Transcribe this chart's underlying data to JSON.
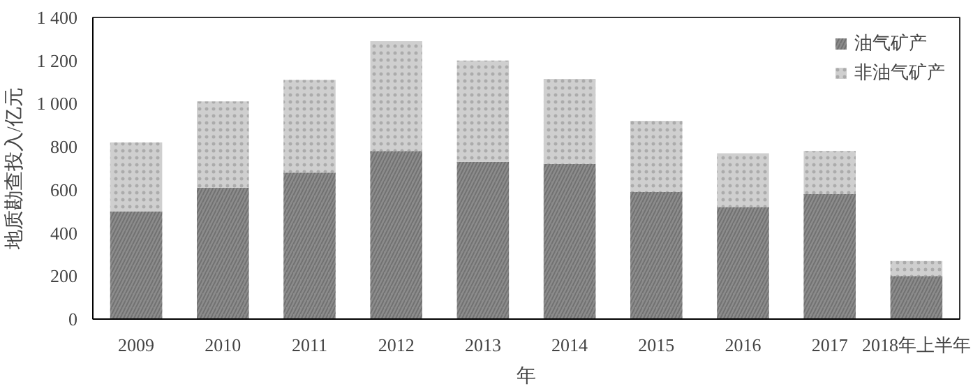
{
  "chart_data": {
    "type": "bar",
    "stacked": true,
    "xlabel": "年",
    "ylabel": "地质勘查投入/亿元",
    "categories": [
      "2009",
      "2010",
      "2011",
      "2012",
      "2013",
      "2014",
      "2015",
      "2016",
      "2017",
      "2018年上半年"
    ],
    "series": [
      {
        "name": "油气矿产",
        "color": "#8c8c8c",
        "values": [
          500,
          610,
          680,
          780,
          730,
          720,
          590,
          520,
          580,
          200
        ]
      },
      {
        "name": "非油气矿产",
        "color": "#cfcfcf",
        "values": [
          320,
          400,
          430,
          510,
          470,
          395,
          330,
          250,
          200,
          70
        ]
      }
    ],
    "ylim": [
      0,
      1400
    ],
    "yticks": [
      0,
      {
        "value": 200,
        "label": "200"
      },
      {
        "value": 400,
        "label": "400"
      },
      {
        "value": 600,
        "label": "600"
      },
      {
        "value": 800,
        "label": "800"
      },
      {
        "value": 1000,
        "label": "1 000"
      },
      {
        "value": 1200,
        "label": "1 200"
      },
      {
        "value": 1400,
        "label": "1 400"
      }
    ],
    "grid": false,
    "legend": "top right"
  }
}
